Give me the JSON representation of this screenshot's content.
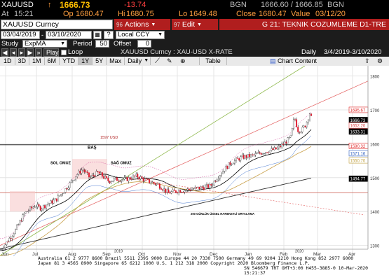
{
  "quote": {
    "ticker": "XAUUSD",
    "arrow": "↑",
    "price": "1666.73",
    "change": "-13.74",
    "bgn1": "BGN",
    "bid_ask": "1666.60 / 1666.85",
    "bgn2": "BGN",
    "at_label": "At",
    "time": "15:21",
    "op_label": "Op",
    "open": "1680.47",
    "hi_label": "Hi",
    "high": "1680.75",
    "lo_label": "Lo",
    "low": "1649.48",
    "close_label": "Close",
    "close": "1680.47",
    "value_label": "Value",
    "value_date": "03/12/20"
  },
  "toolbar": {
    "security": "XAUUSD Curncy",
    "actions_num": "96",
    "actions": "Actions",
    "edit_num": "97",
    "edit": "Edit",
    "title": "G 21: TEKNIK COZUMLEME D1-TRE"
  },
  "range": {
    "start": "03/04/2019",
    "end": "03/10/2020",
    "currency": "Local CCY"
  },
  "study": {
    "label": "Study",
    "value": "ExpMA",
    "period_label": "Period",
    "period": "50",
    "offset_label": "Offset",
    "offset": "0"
  },
  "playbar": {
    "play": "Play",
    "loop": "Loop",
    "chart_title": "XAUUSD Curncy : XAU-USD X-RATE",
    "freq": "Daily",
    "range": "3/4/2019-3/10/2020"
  },
  "periods": [
    "1D",
    "3D",
    "1M",
    "6M",
    "YTD",
    "1Y",
    "5Y",
    "Max"
  ],
  "selected_period": "1Y",
  "freq_select": "Daily",
  "table_btn": "Table",
  "chart_settings": "Chart Content",
  "chart_data": {
    "type": "candlestick",
    "x_labels": [
      "Jun",
      "Jul",
      "Aug",
      "Sep",
      "Oct",
      "Nov",
      "Dec",
      "Jan",
      "Feb",
      "Mar",
      "Apr"
    ],
    "year_labels": [
      "2019",
      "2020"
    ],
    "y_ticks": [
      1800,
      1700,
      1600,
      1500,
      1400,
      1300
    ],
    "ylim": [
      1260,
      1830
    ],
    "annotations": {
      "head": "BAŞ",
      "left_shoulder": "SOL OMUZ",
      "right_shoulder": "SAĞ OMUZ",
      "level": "1597 USD",
      "ma_note": "200 GÜNLÜK ÜSSEL HAREKETLİ ORTALAMA"
    },
    "price_tags": [
      {
        "value": "1695.67",
        "color": "#e02020"
      },
      {
        "value": "1666.73",
        "color": "#000000"
      },
      {
        "value": "1652.20",
        "color": "#e04040"
      },
      {
        "value": "1633.31",
        "color": "#000000"
      },
      {
        "value": "1590.32",
        "color": "#e02020"
      },
      {
        "value": "1571.16",
        "color": "#3060c0"
      },
      {
        "value": "1550.70",
        "color": "#c0a040"
      },
      {
        "value": "1494.77",
        "color": "#000000"
      }
    ]
  },
  "footer": {
    "line1": "Australia 61 2 9777 8600  Brazil 5511 2395 9000  Europe 44 20 7330 7500  Germany 49 69 9204 1210  Hong Kong 852 2977 6000",
    "line2": "Japan 81 3 4565 8900          Singapore 65 6212 1000          U.S. 1 212 318 2000          Copyright 2020 Bloomberg Finance L.P.",
    "line3": "SN 546679 TRT  GMT+3:00 H455-3885-0 10-Mar-2020 15:21:37"
  }
}
